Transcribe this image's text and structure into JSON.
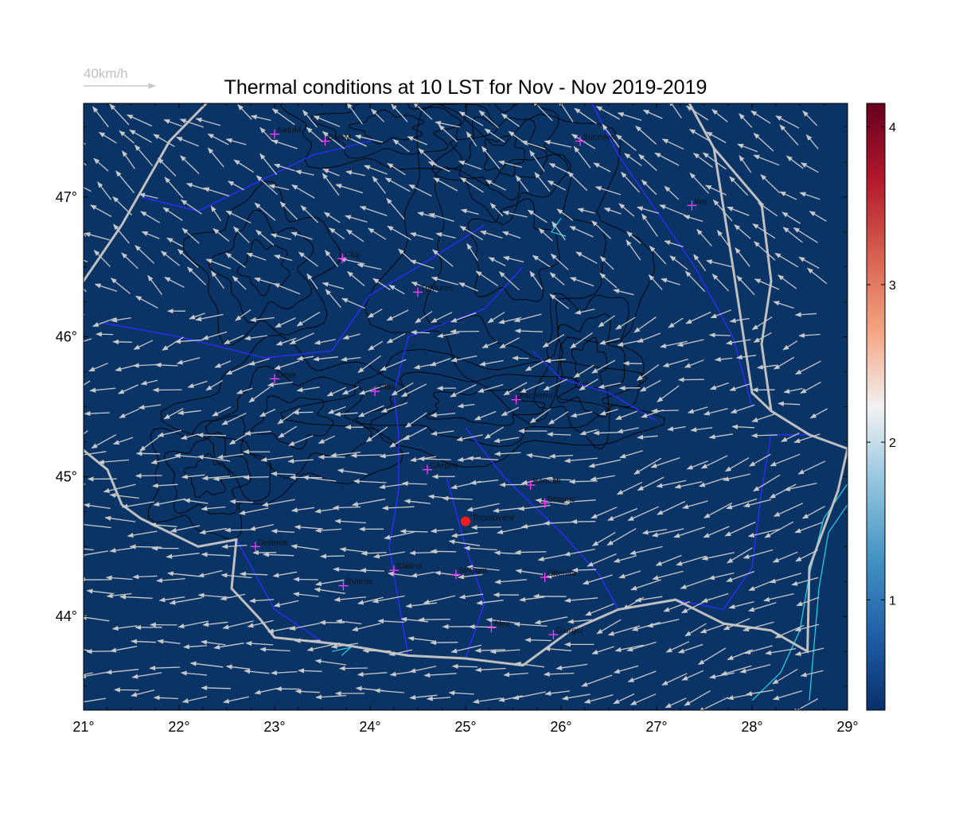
{
  "title": "Thermal conditions at 10 LST for Nov - Nov  2019-2019",
  "legend": {
    "label": "40km/h"
  },
  "colors": {
    "background": "#0a3366",
    "arrow": "#c8c8c8",
    "border": "#c0c0c0",
    "river": "#2d2dff",
    "coast": "#22d8e6",
    "contour": "#000000",
    "city_marker": "#ff3dff",
    "special_marker": "#ff1a1a"
  },
  "map": {
    "lon_range": [
      21,
      29
    ],
    "lat_range": [
      43.33,
      47.67
    ],
    "x_ticks": [
      {
        "value": 21,
        "label": "21°"
      },
      {
        "value": 22,
        "label": "22°"
      },
      {
        "value": 23,
        "label": "23°"
      },
      {
        "value": 24,
        "label": "24°"
      },
      {
        "value": 25,
        "label": "25°"
      },
      {
        "value": 26,
        "label": "26°"
      },
      {
        "value": 27,
        "label": "27°"
      },
      {
        "value": 28,
        "label": "28°"
      },
      {
        "value": 29,
        "label": "29°"
      }
    ],
    "y_ticks": [
      {
        "value": 44,
        "label": "44°"
      },
      {
        "value": 45,
        "label": "45°"
      },
      {
        "value": 46,
        "label": "46°"
      },
      {
        "value": 47,
        "label": "47°"
      }
    ],
    "cities": [
      {
        "name": "SatuM",
        "lon": 23.0,
        "lat": 47.45
      },
      {
        "name": "BaiaM",
        "lon": 23.53,
        "lat": 47.4
      },
      {
        "name": "Suceava",
        "lon": 26.2,
        "lat": 47.4
      },
      {
        "name": "Iasi",
        "lon": 27.37,
        "lat": 46.94
      },
      {
        "name": "Cluj",
        "lon": 23.71,
        "lat": 46.56
      },
      {
        "name": "TgMures",
        "lon": 24.5,
        "lat": 46.32
      },
      {
        "name": "Deva",
        "lon": 23.0,
        "lat": 45.7
      },
      {
        "name": "Sibiu",
        "lon": 24.05,
        "lat": 45.61
      },
      {
        "name": "Sanpetru",
        "lon": 25.53,
        "lat": 45.55
      },
      {
        "name": "CArges",
        "lon": 24.6,
        "lat": 45.05
      },
      {
        "name": "Banesti",
        "lon": 25.68,
        "lat": 44.94
      },
      {
        "name": "Strajnic",
        "lon": 25.83,
        "lat": 44.81
      },
      {
        "name": "Drobeta",
        "lon": 22.8,
        "lat": 44.5
      },
      {
        "name": "Slatina",
        "lon": 24.25,
        "lat": 44.33
      },
      {
        "name": "StrGum",
        "lon": 24.9,
        "lat": 44.3
      },
      {
        "name": "Oltenita",
        "lon": 25.83,
        "lat": 44.28
      },
      {
        "name": "BVerde",
        "lon": 23.72,
        "lat": 44.22
      },
      {
        "name": "Alex",
        "lon": 25.27,
        "lat": 43.92
      },
      {
        "name": "Giurgiu",
        "lon": 25.92,
        "lat": 43.87
      }
    ],
    "special_site": {
      "name": "Topoloveni",
      "lon": 25.0,
      "lat": 44.68
    },
    "wind_pattern": "predominantly easterly winds, strongest in the south-east plain, north-westerly pointing vectors in the north"
  },
  "colorbar": {
    "range": [
      0.3,
      4.15
    ],
    "ticks": [
      {
        "value": 1,
        "label": "1"
      },
      {
        "value": 2,
        "label": "2"
      },
      {
        "value": 3,
        "label": "3"
      },
      {
        "value": 4,
        "label": "4"
      }
    ],
    "colormap": [
      "#08306b",
      "#1f5fa8",
      "#4393c3",
      "#92c5de",
      "#f2f2f2",
      "#f4a582",
      "#d6604d",
      "#b2182b",
      "#67001f"
    ]
  }
}
